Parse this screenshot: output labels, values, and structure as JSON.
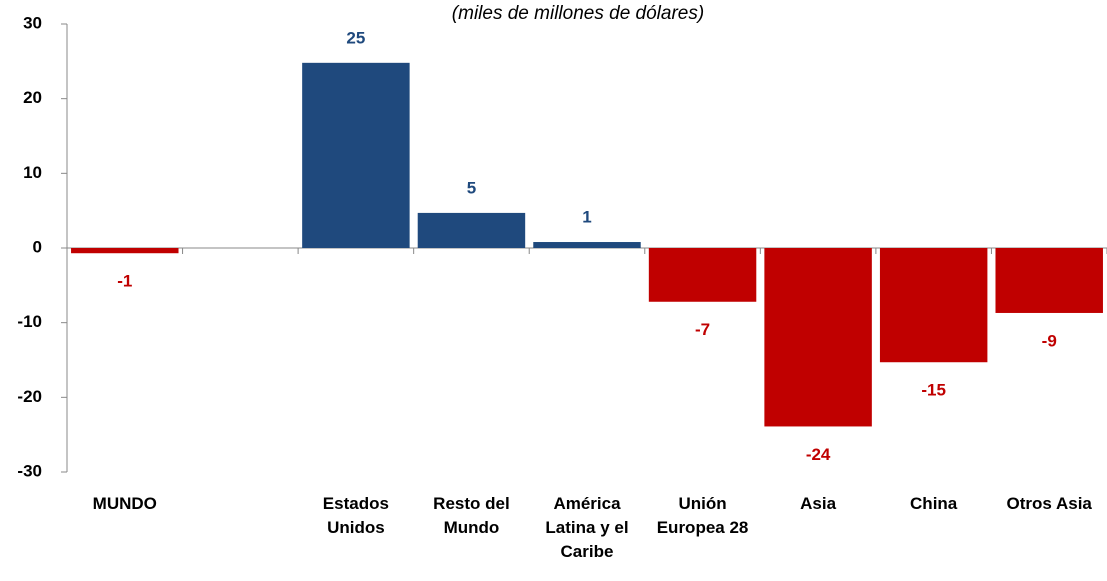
{
  "chart_data": {
    "type": "bar",
    "subtitle": "(miles de millones de dólares)",
    "categories": [
      "MUNDO",
      null,
      "Estados Unidos",
      "Resto del Mundo",
      "América Latina y el Caribe",
      "Unión Europea 28",
      "Asia",
      "China",
      "Otros Asia"
    ],
    "values": [
      -0.7,
      null,
      24.8,
      4.7,
      0.8,
      -7.2,
      -23.9,
      -15.3,
      -8.7
    ],
    "value_labels": [
      "-1",
      null,
      "25",
      "5",
      "1",
      "-7",
      "-24",
      "-15",
      "-9"
    ],
    "colors": [
      "#c00000",
      null,
      "#1f497d",
      "#1f497d",
      "#1f497d",
      "#c00000",
      "#c00000",
      "#c00000",
      "#c00000"
    ],
    "ylim": [
      -30,
      30
    ],
    "yticks": [
      -30,
      -20,
      -10,
      0,
      10,
      20,
      30
    ],
    "grid": false
  }
}
